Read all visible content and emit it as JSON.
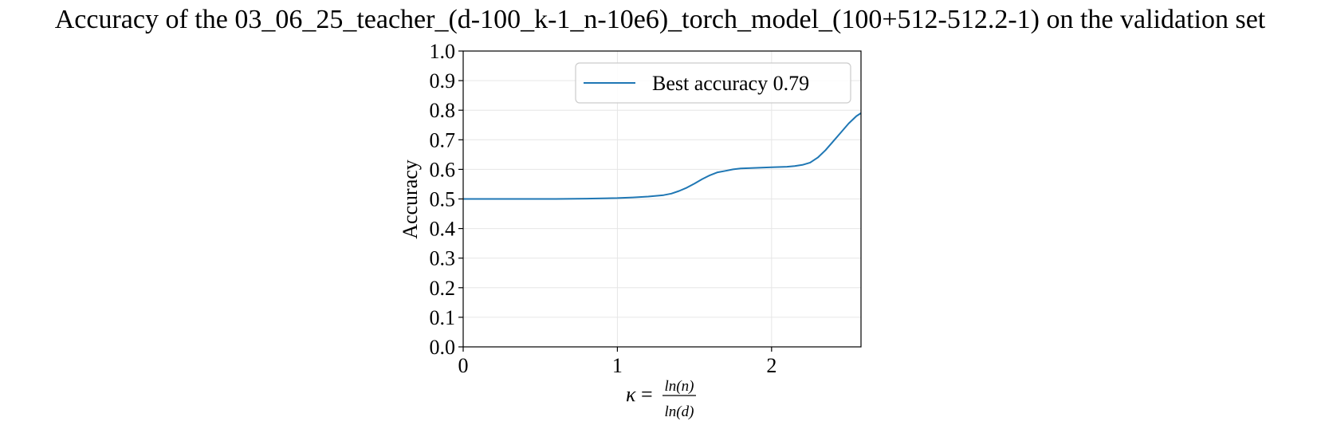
{
  "chart_data": {
    "type": "line",
    "title": "Accuracy of the 03_06_25_teacher_(d-100_k-1_n-10e6)_torch_model_(100+512-512.2-1) on the validation set",
    "xlabel": {
      "symbol": "κ",
      "equals": "=",
      "numerator": "ln(n)",
      "denominator": "ln(d)"
    },
    "ylabel": "Accuracy",
    "xlim": [
      0,
      2.58
    ],
    "ylim": [
      0,
      1.0
    ],
    "x_ticks": [
      0,
      1,
      2
    ],
    "x_tick_labels": [
      "0",
      "1",
      "2"
    ],
    "y_ticks": [
      0.0,
      0.1,
      0.2,
      0.3,
      0.4,
      0.5,
      0.6,
      0.7,
      0.8,
      0.9,
      1.0
    ],
    "y_tick_labels": [
      "0.0",
      "0.1",
      "0.2",
      "0.3",
      "0.4",
      "0.5",
      "0.6",
      "0.7",
      "0.8",
      "0.9",
      "1.0"
    ],
    "grid": true,
    "legend_position": "top-right",
    "series": [
      {
        "name": "Best accuracy 0.79",
        "color": "#1f77b4",
        "x": [
          0,
          0.2,
          0.4,
          0.6,
          0.8,
          1.0,
          1.1,
          1.2,
          1.3,
          1.35,
          1.4,
          1.45,
          1.5,
          1.55,
          1.6,
          1.65,
          1.7,
          1.75,
          1.8,
          1.9,
          2.0,
          2.1,
          2.15,
          2.2,
          2.25,
          2.3,
          2.35,
          2.4,
          2.45,
          2.5,
          2.55,
          2.58
        ],
        "y": [
          0.5,
          0.5,
          0.5,
          0.5,
          0.501,
          0.503,
          0.505,
          0.508,
          0.513,
          0.518,
          0.527,
          0.538,
          0.552,
          0.567,
          0.58,
          0.59,
          0.595,
          0.6,
          0.603,
          0.605,
          0.607,
          0.609,
          0.611,
          0.615,
          0.623,
          0.64,
          0.665,
          0.695,
          0.725,
          0.755,
          0.78,
          0.79
        ]
      }
    ]
  }
}
